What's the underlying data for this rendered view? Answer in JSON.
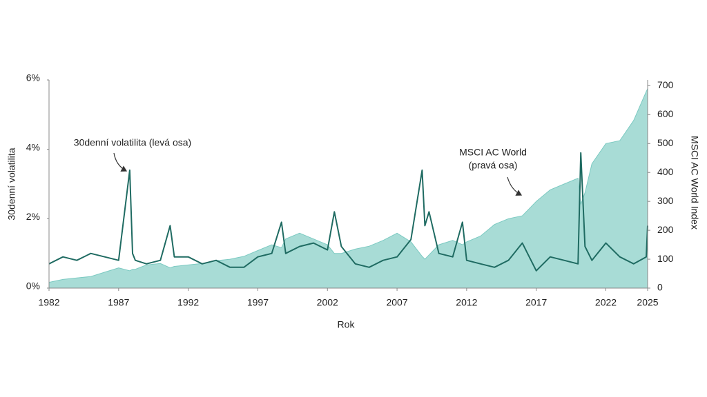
{
  "chart_data": {
    "type": "line-area",
    "xlabel": "Rok",
    "ylabel": "30denní volatilita",
    "y2label": "MSCI AC World Index",
    "annotations": [
      "30denní volatilita (levá osa)",
      "MSCI AC World",
      "(pravá osa)"
    ],
    "x": [
      1982,
      1983,
      1984,
      1985,
      1986,
      1987,
      1987.8,
      1988,
      1988.2,
      1989,
      1990,
      1990.7,
      1991,
      1992,
      1993,
      1994,
      1995,
      1996,
      1997,
      1998,
      1998.7,
      1999,
      2000,
      2001,
      2002,
      2002.5,
      2003,
      2004,
      2005,
      2006,
      2007,
      2008,
      2008.8,
      2009,
      2009.3,
      2010,
      2011,
      2011.7,
      2012,
      2013,
      2014,
      2015,
      2016,
      2017,
      2018,
      2019,
      2020,
      2020.2,
      2020.5,
      2021,
      2022,
      2023,
      2024,
      2024.9,
      2025
    ],
    "series": [
      {
        "name": "30denní volatilita",
        "color": "#1f6b62",
        "axis": "y",
        "values": [
          0.7,
          0.9,
          0.8,
          1.0,
          0.9,
          0.8,
          3.4,
          1.0,
          0.8,
          0.7,
          0.8,
          1.8,
          0.9,
          0.9,
          0.7,
          0.8,
          0.6,
          0.6,
          0.9,
          1.0,
          1.9,
          1.0,
          1.2,
          1.3,
          1.1,
          2.2,
          1.2,
          0.7,
          0.6,
          0.8,
          0.9,
          1.4,
          3.4,
          1.8,
          2.2,
          1.0,
          0.9,
          1.9,
          0.8,
          0.7,
          0.6,
          0.8,
          1.3,
          0.5,
          0.9,
          0.8,
          0.7,
          3.9,
          1.2,
          0.8,
          1.3,
          0.9,
          0.7,
          0.9,
          1.8
        ]
      },
      {
        "name": "MSCI AC World",
        "color": "#a8dcd6",
        "axis": "y2",
        "values": [
          20,
          30,
          35,
          40,
          55,
          70,
          60,
          65,
          65,
          80,
          85,
          70,
          75,
          80,
          85,
          95,
          100,
          110,
          130,
          150,
          140,
          170,
          190,
          170,
          150,
          120,
          120,
          135,
          145,
          165,
          190,
          160,
          110,
          100,
          115,
          150,
          165,
          150,
          160,
          180,
          220,
          240,
          250,
          300,
          340,
          360,
          380,
          290,
          330,
          430,
          500,
          510,
          580,
          680,
          690
        ]
      }
    ],
    "xlim": [
      1982,
      2025
    ],
    "xticks": [
      1982,
      1987,
      1992,
      1997,
      2002,
      2007,
      2012,
      2017,
      2022,
      2025
    ],
    "ylim": [
      0,
      6
    ],
    "yticks": [
      {
        "value": 0,
        "label": "0%"
      },
      {
        "value": 2,
        "label": "2%"
      },
      {
        "value": 4,
        "label": "4%"
      },
      {
        "value": 6,
        "label": "6%"
      }
    ],
    "y2lim": [
      0,
      720
    ],
    "y2ticks": [
      0,
      100,
      200,
      300,
      400,
      500,
      600,
      700
    ]
  }
}
